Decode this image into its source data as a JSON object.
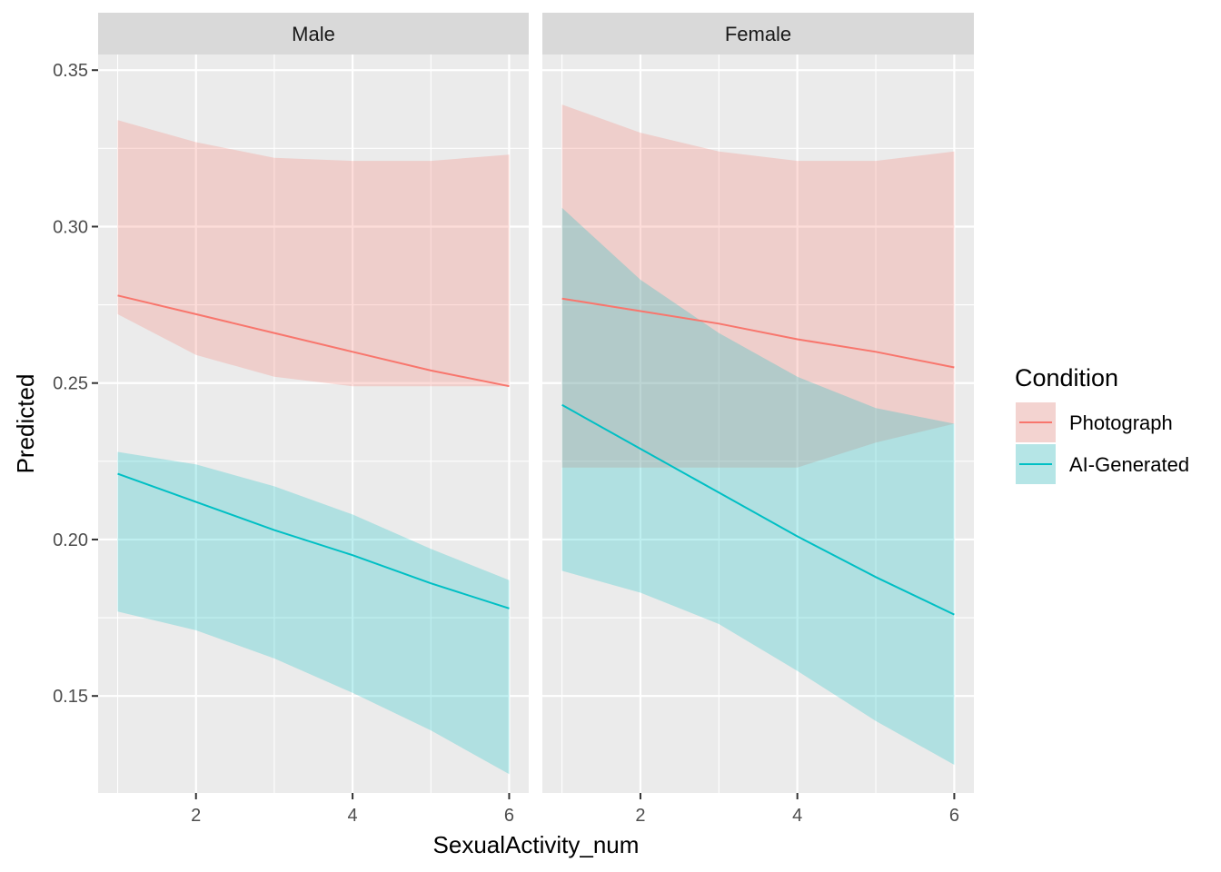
{
  "chart_data": {
    "type": "line",
    "facet_by": "gender",
    "xlabel": "SexualActivity_num",
    "ylabel": "Predicted",
    "xlim": [
      0.75,
      6.25
    ],
    "ylim": [
      0.119,
      0.355
    ],
    "x_ticks": [
      2,
      4,
      6
    ],
    "x_tick_labels": [
      "2",
      "4",
      "6"
    ],
    "y_ticks": [
      0.15,
      0.2,
      0.25,
      0.3,
      0.35
    ],
    "y_tick_labels": [
      "0.15",
      "0.20",
      "0.25",
      "0.30",
      "0.35"
    ],
    "grid": true,
    "ribbon_opacity": 0.25,
    "legend": {
      "title": "Condition",
      "position": "right",
      "entries": [
        {
          "name": "Photograph",
          "color": "#F8766D"
        },
        {
          "name": "AI-Generated",
          "color": "#00BFC4"
        }
      ]
    },
    "x": [
      1,
      2,
      3,
      4,
      5,
      6
    ],
    "panels": [
      {
        "label": "Male",
        "series": [
          {
            "name": "Photograph",
            "color": "#F8766D",
            "values": [
              0.278,
              0.272,
              0.266,
              0.26,
              0.254,
              0.249
            ],
            "lower": [
              0.272,
              0.259,
              0.252,
              0.249,
              0.249,
              0.249
            ],
            "upper": [
              0.334,
              0.327,
              0.322,
              0.321,
              0.321,
              0.323
            ]
          },
          {
            "name": "AI-Generated",
            "color": "#00BFC4",
            "values": [
              0.221,
              0.212,
              0.203,
              0.195,
              0.186,
              0.178
            ],
            "lower": [
              0.177,
              0.171,
              0.162,
              0.151,
              0.139,
              0.125
            ],
            "upper": [
              0.228,
              0.224,
              0.217,
              0.208,
              0.197,
              0.187
            ]
          }
        ]
      },
      {
        "label": "Female",
        "series": [
          {
            "name": "Photograph",
            "color": "#F8766D",
            "values": [
              0.277,
              0.273,
              0.269,
              0.264,
              0.26,
              0.255
            ],
            "lower": [
              0.223,
              0.223,
              0.223,
              0.223,
              0.231,
              0.237
            ],
            "upper": [
              0.339,
              0.33,
              0.324,
              0.321,
              0.321,
              0.324
            ]
          },
          {
            "name": "AI-Generated",
            "color": "#00BFC4",
            "values": [
              0.243,
              0.229,
              0.215,
              0.201,
              0.188,
              0.176
            ],
            "lower": [
              0.19,
              0.183,
              0.173,
              0.158,
              0.142,
              0.128
            ],
            "upper": [
              0.306,
              0.283,
              0.266,
              0.252,
              0.242,
              0.237
            ]
          }
        ]
      }
    ]
  }
}
